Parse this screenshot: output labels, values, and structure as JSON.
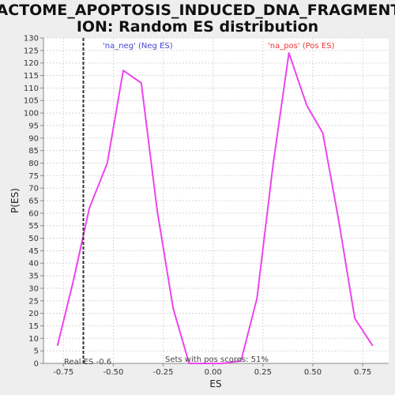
{
  "colors": {
    "background": "#eeeeee",
    "plot_background": "#ffffff",
    "curve": "#ee44ee",
    "neg_label": "#4444cc",
    "pos_label": "#ee3333",
    "real_es_line": "#333333"
  },
  "chart_data": {
    "type": "line",
    "title_lines": [
      "REACTOME_APOPTOSIS_INDUCED_DNA_FRAGMENTAT",
      "ION: Random ES distribution"
    ],
    "xlabel": "ES",
    "ylabel": "P(ES)",
    "xlim": [
      -0.85,
      0.88
    ],
    "ylim": [
      0,
      130
    ],
    "xticks": [
      -0.75,
      -0.5,
      -0.25,
      0.0,
      0.25,
      0.5,
      0.75
    ],
    "xtick_labels": [
      "-0.75",
      "-0.50",
      "-0.25",
      "0.00",
      "0.25",
      "0.50",
      "0.75"
    ],
    "yticks": [
      0,
      5,
      10,
      15,
      20,
      25,
      30,
      35,
      40,
      45,
      50,
      55,
      60,
      65,
      70,
      75,
      80,
      85,
      90,
      95,
      100,
      105,
      110,
      115,
      120,
      125,
      130
    ],
    "grid": true,
    "series": [
      {
        "x": [
          -0.78,
          -0.7,
          -0.62,
          -0.53,
          -0.45,
          -0.36,
          -0.28,
          -0.2,
          -0.12,
          -0.03,
          0.05,
          0.14,
          0.22,
          0.3,
          0.38,
          0.47,
          0.55,
          0.63,
          0.71,
          0.8
        ],
        "values": [
          7,
          33,
          62,
          80,
          117,
          112,
          61,
          22,
          0,
          0,
          0,
          1,
          26,
          79,
          124,
          103,
          92,
          57,
          18,
          7
        ]
      }
    ],
    "annotations": {
      "neg_label": "'na_neg' (Neg ES)",
      "pos_label": "'na_pos' (Pos ES)",
      "real_es": {
        "x": -0.65,
        "label": "Real ES -0.6"
      },
      "pos_scores_label": "Sets with pos scores: 51%"
    }
  }
}
